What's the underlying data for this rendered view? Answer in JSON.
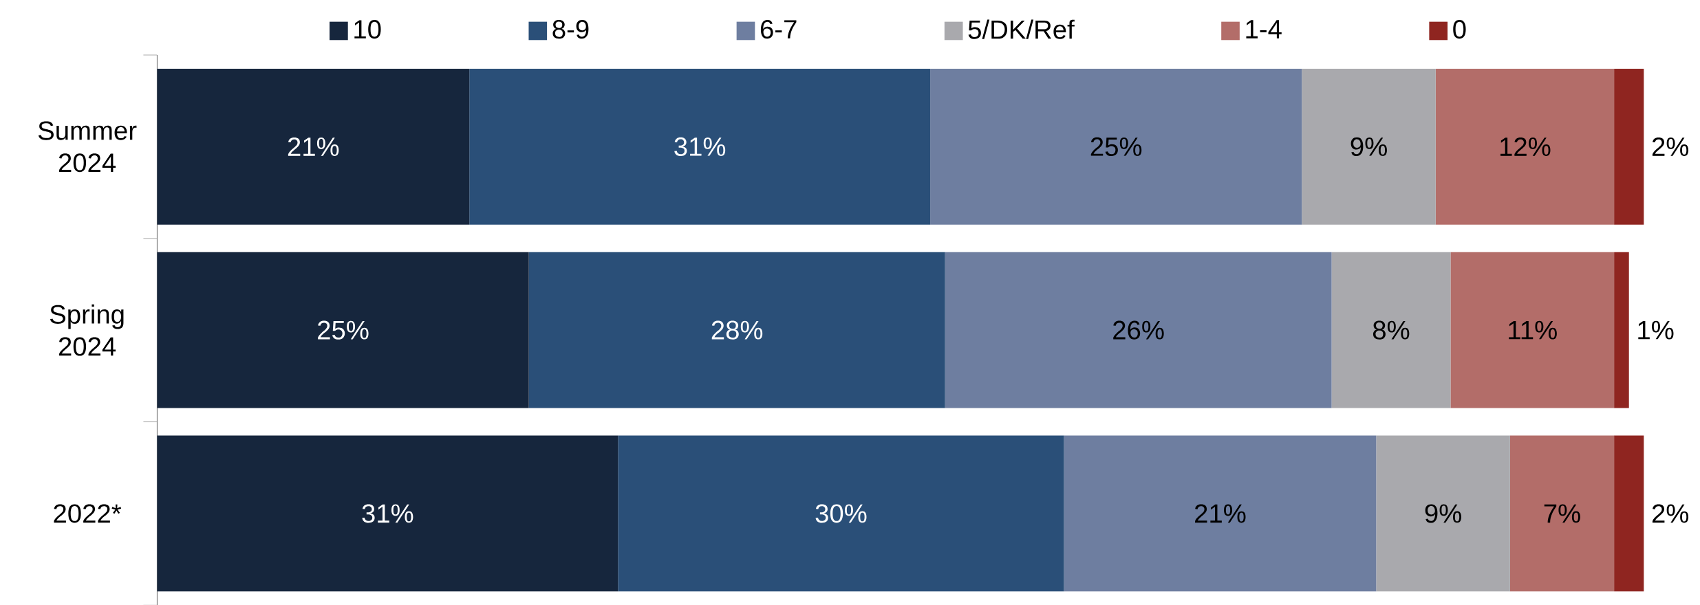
{
  "chart_data": {
    "type": "bar",
    "orientation": "horizontal",
    "stacked": true,
    "legend": "top",
    "categories": [
      "Summer 2024",
      "Spring 2024",
      "2022*"
    ],
    "series": [
      {
        "name": "10",
        "color": "#16263d",
        "values": [
          21,
          25,
          31
        ],
        "value_labels": [
          "21%",
          "25%",
          "31%"
        ]
      },
      {
        "name": "8-9",
        "color": "#2a4f78",
        "values": [
          31,
          28,
          30
        ],
        "value_labels": [
          "31%",
          "28%",
          "30%"
        ]
      },
      {
        "name": "6-7",
        "color": "#6e7ea0",
        "values": [
          25,
          26,
          21
        ],
        "value_labels": [
          "25%",
          "26%",
          "21%"
        ]
      },
      {
        "name": "5/DK/Ref",
        "color": "#a9a9ad",
        "values": [
          9,
          8,
          9
        ],
        "value_labels": [
          "9%",
          "8%",
          "9%"
        ]
      },
      {
        "name": "1-4",
        "color": "#b36d69",
        "values": [
          12,
          11,
          7
        ],
        "value_labels": [
          "12%",
          "11%",
          "7%"
        ]
      },
      {
        "name": "0",
        "color": "#8f2520",
        "values": [
          2,
          1,
          2
        ],
        "value_labels": [
          "2%",
          "1%",
          "2%"
        ]
      }
    ]
  }
}
